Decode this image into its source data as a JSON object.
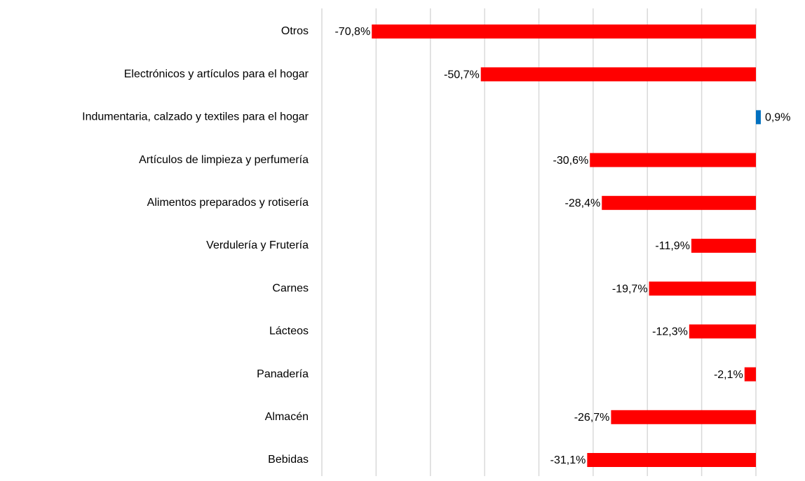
{
  "chart_data": {
    "type": "hbar",
    "categories": [
      "Otros",
      "Electrónicos y artículos para el hogar",
      "Indumentaria, calzado y textiles para el hogar",
      "Artículos de limpieza y perfumería",
      "Alimentos preparados y rotisería",
      "Verdulería y Frutería",
      "Carnes",
      "Lácteos",
      "Panadería",
      "Almacén",
      "Bebidas"
    ],
    "values": [
      -70.8,
      -50.7,
      0.9,
      -30.6,
      -28.4,
      -11.9,
      -19.7,
      -12.3,
      -2.1,
      -26.7,
      -31.1
    ],
    "value_labels": [
      "-70,8%",
      "-50,7%",
      "0,9%",
      "-30,6%",
      "-28,4%",
      "-11,9%",
      "-19,7%",
      "-12,3%",
      "-2,1%",
      "-26,7%",
      "-31,1%"
    ],
    "color": "#ff0000",
    "positive_color": "#0070c0",
    "xlim": [
      -80,
      0
    ],
    "xticks": [
      -80,
      -70,
      -60,
      -50,
      -40,
      -30,
      -20,
      -10,
      0
    ],
    "grid": true
  }
}
